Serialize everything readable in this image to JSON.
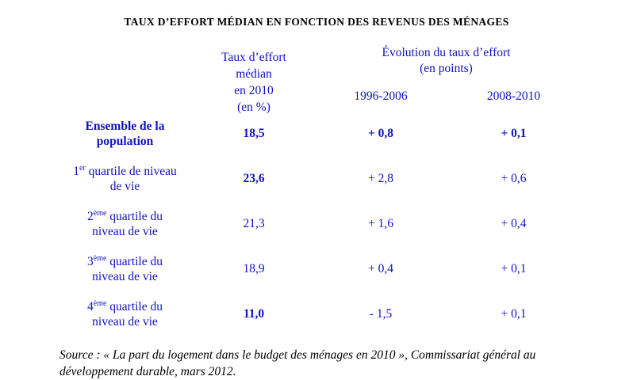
{
  "title": "TAUX D’EFFORT MÉDIAN EN FONCTION DES REVENUS DES MÉNAGES",
  "colors": {
    "accent_blue": "#1111c0",
    "text_black": "#000000"
  },
  "header": {
    "median": {
      "line1": "Taux d’effort médian",
      "line2": "en 2010",
      "line3": "(en %)"
    },
    "evolution": {
      "line1": "Évolution du taux d’effort",
      "line2": "(en points)"
    },
    "periods": {
      "p1": "1996-2006",
      "p2": "2008-2010"
    }
  },
  "rows": [
    {
      "label_num": "",
      "label_sup": "",
      "label_rest": "Ensemble de la",
      "label_line2": "population",
      "median": "18,5",
      "evo1": "+ 0,8",
      "evo2": "+ 0,1"
    },
    {
      "label_num": "1",
      "label_sup": "er",
      "label_rest": " quartile de niveau",
      "label_line2": "de vie",
      "median": "23,6",
      "evo1": "+ 2,8",
      "evo2": "+ 0,6"
    },
    {
      "label_num": "2",
      "label_sup": "ème",
      "label_rest": " quartile du",
      "label_line2": "niveau de vie",
      "median": "21,3",
      "evo1": "+ 1,6",
      "evo2": "+ 0,4"
    },
    {
      "label_num": "3",
      "label_sup": "ème",
      "label_rest": " quartile du",
      "label_line2": "niveau de vie",
      "median": "18,9",
      "evo1": "+ 0,4",
      "evo2": "+ 0,1"
    },
    {
      "label_num": "4",
      "label_sup": "ème",
      "label_rest": " quartile du",
      "label_line2": "niveau de vie",
      "median": "11,0",
      "evo1": "- 1,5",
      "evo2": "+ 0,1"
    }
  ],
  "source": {
    "line1": "Source : « La part du logement dans le budget des ménages en 2010 », Commissariat général au",
    "line2": "développement durable, mars 2012."
  },
  "chart_data": {
    "type": "table",
    "title": "TAUX D’EFFORT MÉDIAN EN FONCTION DES REVENUS DES MÉNAGES",
    "columns": [
      "Taux d’effort médian en 2010 (en %)",
      "Évolution du taux d’effort (en points) 1996-2006",
      "Évolution du taux d’effort (en points) 2008-2010"
    ],
    "row_labels": [
      "Ensemble de la population",
      "1er quartile de niveau de vie",
      "2ème quartile du niveau de vie",
      "3ème quartile du niveau de vie",
      "4ème quartile du niveau de vie"
    ],
    "values": [
      [
        18.5,
        0.8,
        0.1
      ],
      [
        23.6,
        2.8,
        0.6
      ],
      [
        21.3,
        1.6,
        0.4
      ],
      [
        18.9,
        0.4,
        0.1
      ],
      [
        11.0,
        -1.5,
        0.1
      ]
    ]
  }
}
